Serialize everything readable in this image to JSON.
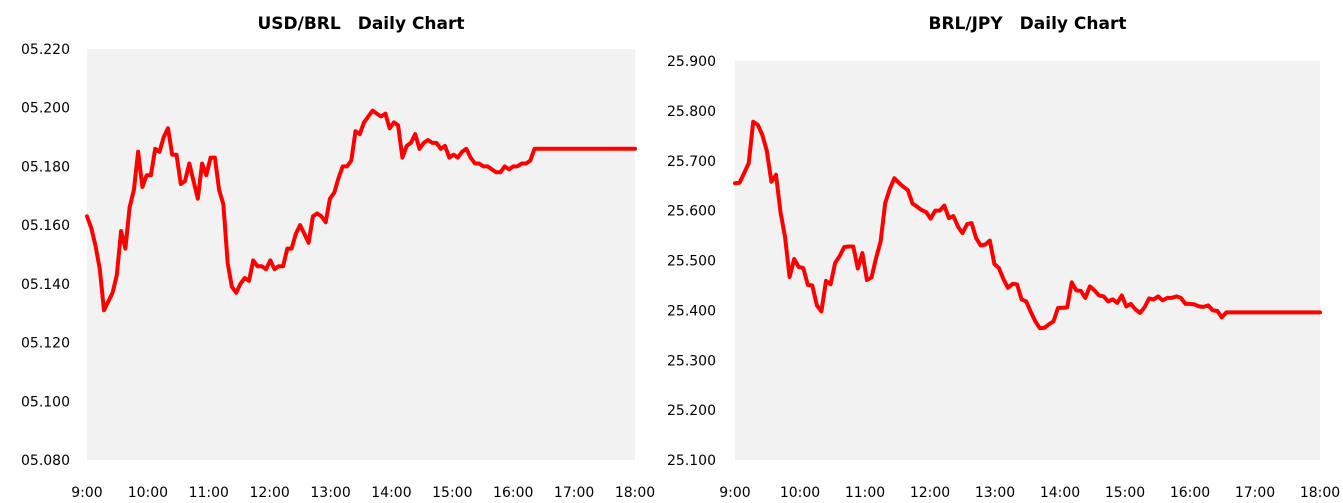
{
  "chart_data": [
    {
      "type": "line",
      "title": "USD/BRL　Daily Chart",
      "xlabel": "",
      "ylabel": "",
      "xticks": [
        "9:00",
        "10:00",
        "11:00",
        "12:00",
        "13:00",
        "14:00",
        "15:00",
        "16:00",
        "17:00",
        "18:00"
      ],
      "yticks": [
        "05.220",
        "05.200",
        "05.180",
        "05.160",
        "05.140",
        "05.120",
        "05.100",
        "05.080"
      ],
      "ylim": [
        5.08,
        5.22
      ],
      "x_range": [
        0,
        9
      ],
      "grid": false,
      "legend": "none",
      "series": [
        {
          "color": "#ff0000",
          "x": [
            0,
            0.07,
            0.14,
            0.21,
            0.28,
            0.35,
            0.42,
            0.49,
            0.56,
            0.63,
            0.7,
            0.77,
            0.84,
            0.91,
            0.98,
            1.05,
            1.12,
            1.19,
            1.26,
            1.33,
            1.4,
            1.47,
            1.54,
            1.61,
            1.68,
            1.75,
            1.82,
            1.89,
            1.96,
            2.03,
            2.1,
            2.17,
            2.24,
            2.31,
            2.38,
            2.45,
            2.52,
            2.59,
            2.66,
            2.73,
            2.8,
            2.87,
            2.94,
            3.01,
            3.08,
            3.15,
            3.22,
            3.29,
            3.36,
            3.43,
            3.5,
            3.57,
            3.64,
            3.71,
            3.78,
            3.85,
            3.92,
            3.99,
            4.06,
            4.13,
            4.2,
            4.27,
            4.34,
            4.41,
            4.48,
            4.55,
            4.62,
            4.69,
            4.76,
            4.83,
            4.9,
            4.97,
            5.04,
            5.11,
            5.18,
            5.25,
            5.32,
            5.39,
            5.46,
            5.53,
            5.6,
            5.67,
            5.74,
            5.81,
            5.88,
            5.95,
            6.02,
            6.09,
            6.16,
            6.23,
            6.3,
            6.37,
            6.44,
            6.51,
            6.58,
            6.65,
            6.72,
            6.79,
            6.86,
            6.93,
            7.0,
            7.07,
            7.14,
            7.21,
            7.28,
            7.35,
            7.42,
            7.49,
            7.56,
            7.63,
            7.7,
            7.77,
            7.84,
            7.91,
            7.98,
            8.05,
            8.12,
            8.19,
            8.26,
            8.33,
            8.4,
            8.47,
            8.54,
            8.61,
            8.68,
            8.75,
            8.82,
            8.89,
            8.96,
            9.0
          ],
          "y": [
            5.163,
            5.159,
            5.153,
            5.145,
            5.131,
            5.134,
            5.137,
            5.143,
            5.158,
            5.152,
            5.166,
            5.172,
            5.185,
            5.173,
            5.177,
            5.177,
            5.186,
            5.185,
            5.19,
            5.193,
            5.184,
            5.184,
            5.174,
            5.175,
            5.181,
            5.175,
            5.169,
            5.181,
            5.177,
            5.183,
            5.183,
            5.172,
            5.167,
            5.147,
            5.139,
            5.137,
            5.14,
            5.142,
            5.141,
            5.148,
            5.146,
            5.146,
            5.145,
            5.148,
            5.145,
            5.146,
            5.146,
            5.152,
            5.152,
            5.157,
            5.16,
            5.157,
            5.154,
            5.163,
            5.164,
            5.163,
            5.161,
            5.169,
            5.171,
            5.176,
            5.18,
            5.18,
            5.182,
            5.192,
            5.191,
            5.195,
            5.197,
            5.199,
            5.198,
            5.197,
            5.198,
            5.193,
            5.195,
            5.194,
            5.183,
            5.187,
            5.188,
            5.191,
            5.186,
            5.188,
            5.189,
            5.188,
            5.188,
            5.186,
            5.187,
            5.183,
            5.184,
            5.183,
            5.185,
            5.186,
            5.183,
            5.181,
            5.181,
            5.18,
            5.18,
            5.179,
            5.178,
            5.178,
            5.18,
            5.179,
            5.18,
            5.18,
            5.181,
            5.181,
            5.182,
            5.186,
            5.186,
            5.186,
            5.186,
            5.186,
            5.186,
            5.186,
            5.186,
            5.186,
            5.186,
            5.186,
            5.186,
            5.186,
            5.186,
            5.186,
            5.186,
            5.186,
            5.186,
            5.186,
            5.186,
            5.186,
            5.186,
            5.186,
            5.186,
            5.186
          ]
        }
      ]
    },
    {
      "type": "line",
      "title": "BRL/JPY　Daily Chart",
      "xlabel": "",
      "ylabel": "",
      "xticks": [
        "9:00",
        "10:00",
        "11:00",
        "12:00",
        "13:00",
        "14:00",
        "15:00",
        "16:00",
        "17:00",
        "18:00"
      ],
      "yticks": [
        "25.900",
        "25.800",
        "25.700",
        "25.600",
        "25.500",
        "25.400",
        "25.300",
        "25.200",
        "25.100"
      ],
      "ylim": [
        25.1,
        25.9
      ],
      "x_range": [
        0,
        9
      ],
      "grid": false,
      "legend": "none",
      "series": [
        {
          "color": "#ff0000",
          "x": [
            0,
            0.07,
            0.14,
            0.21,
            0.28,
            0.35,
            0.42,
            0.49,
            0.56,
            0.63,
            0.7,
            0.77,
            0.84,
            0.91,
            0.98,
            1.05,
            1.12,
            1.19,
            1.26,
            1.33,
            1.4,
            1.47,
            1.54,
            1.61,
            1.68,
            1.75,
            1.82,
            1.89,
            1.96,
            2.03,
            2.1,
            2.17,
            2.24,
            2.31,
            2.38,
            2.45,
            2.52,
            2.59,
            2.66,
            2.73,
            2.8,
            2.87,
            2.94,
            3.01,
            3.08,
            3.15,
            3.22,
            3.29,
            3.36,
            3.43,
            3.5,
            3.57,
            3.64,
            3.71,
            3.78,
            3.85,
            3.92,
            3.99,
            4.06,
            4.13,
            4.2,
            4.27,
            4.34,
            4.41,
            4.48,
            4.55,
            4.62,
            4.69,
            4.76,
            4.83,
            4.9,
            4.97,
            5.04,
            5.11,
            5.18,
            5.25,
            5.32,
            5.39,
            5.46,
            5.53,
            5.6,
            5.67,
            5.74,
            5.81,
            5.88,
            5.95,
            6.02,
            6.09,
            6.16,
            6.23,
            6.3,
            6.37,
            6.44,
            6.51,
            6.58,
            6.65,
            6.72,
            6.79,
            6.86,
            6.93,
            7.0,
            7.07,
            7.14,
            7.21,
            7.28,
            7.35,
            7.42,
            7.49,
            7.56,
            7.63,
            7.7,
            7.77,
            7.84,
            7.91,
            7.98,
            8.05,
            8.12,
            8.19,
            8.26,
            8.33,
            8.4,
            8.47,
            8.54,
            8.61,
            8.68,
            8.75,
            8.82,
            8.89,
            8.96,
            9.0
          ],
          "y": [
            25.655,
            25.656,
            25.675,
            25.695,
            25.778,
            25.772,
            25.752,
            25.72,
            25.658,
            25.672,
            25.597,
            25.548,
            25.467,
            25.503,
            25.487,
            25.485,
            25.451,
            25.45,
            25.41,
            25.398,
            25.459,
            25.452,
            25.495,
            25.509,
            25.527,
            25.528,
            25.528,
            25.484,
            25.515,
            25.461,
            25.466,
            25.505,
            25.538,
            25.615,
            25.643,
            25.665,
            25.656,
            25.648,
            25.641,
            25.614,
            25.608,
            25.601,
            25.597,
            25.584,
            25.6,
            25.6,
            25.61,
            25.585,
            25.589,
            25.568,
            25.555,
            25.573,
            25.575,
            25.545,
            25.53,
            25.532,
            25.54,
            25.493,
            25.485,
            25.463,
            25.445,
            25.453,
            25.452,
            25.422,
            25.418,
            25.397,
            25.378,
            25.364,
            25.365,
            25.372,
            25.378,
            25.405,
            25.405,
            25.406,
            25.456,
            25.44,
            25.439,
            25.425,
            25.448,
            25.44,
            25.43,
            25.428,
            25.418,
            25.422,
            25.415,
            25.43,
            25.408,
            25.413,
            25.402,
            25.395,
            25.406,
            25.424,
            25.422,
            25.428,
            25.42,
            25.425,
            25.425,
            25.428,
            25.425,
            25.413,
            25.413,
            25.412,
            25.408,
            25.407,
            25.41,
            25.4,
            25.399,
            25.386,
            25.396,
            25.396,
            25.396,
            25.396,
            25.396,
            25.396,
            25.396,
            25.396,
            25.396,
            25.396,
            25.396,
            25.396,
            25.396,
            25.396,
            25.396,
            25.396,
            25.396,
            25.396,
            25.396,
            25.396,
            25.396,
            25.396
          ]
        }
      ]
    }
  ]
}
